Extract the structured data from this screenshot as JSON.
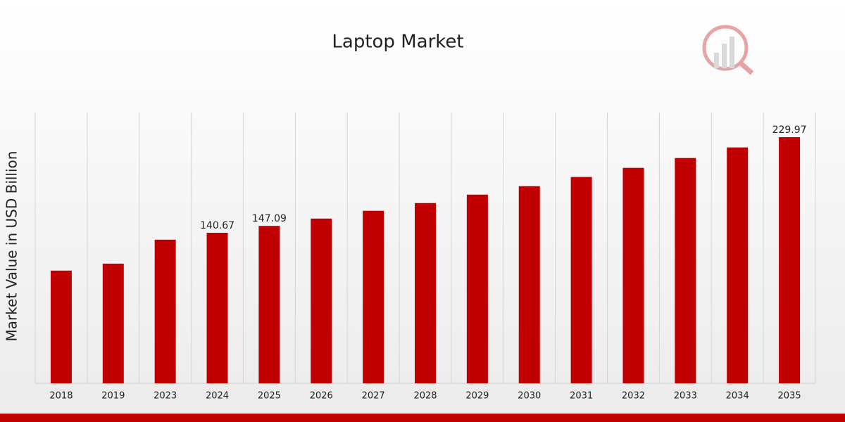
{
  "chart_data": {
    "type": "bar",
    "title": "Laptop Market",
    "y_label": "Market Value in USD Billion",
    "categories": [
      "2018",
      "2019",
      "2023",
      "2024",
      "2025",
      "2026",
      "2027",
      "2028",
      "2029",
      "2030",
      "2031",
      "2032",
      "2033",
      "2034",
      "2035"
    ],
    "values": [
      105.3,
      111.8,
      134.2,
      140.67,
      147.09,
      153.9,
      161.2,
      168.4,
      176.3,
      184.2,
      192.8,
      201.3,
      210.5,
      220.4,
      229.97
    ],
    "value_labels": [
      null,
      null,
      null,
      "140.67",
      "147.09",
      null,
      null,
      null,
      null,
      null,
      null,
      null,
      null,
      null,
      "229.97"
    ],
    "color": "#c00000",
    "ylim": [
      0,
      253
    ]
  }
}
